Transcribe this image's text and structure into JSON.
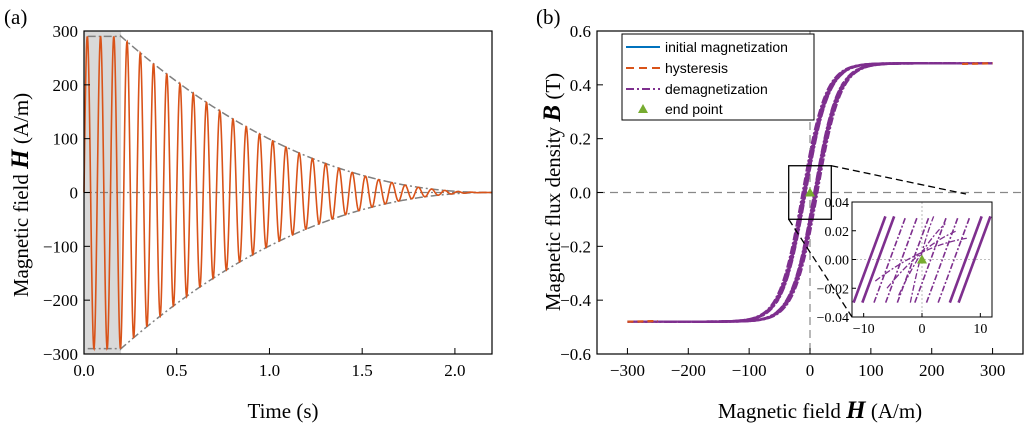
{
  "chart_data": [
    {
      "panel": "(a)",
      "type": "line",
      "xlabel_text": "Time (s)",
      "ylabel_text": "Magnetic field ",
      "ylabel_symbol": "H",
      "ylabel_unit": " (A/m)",
      "xlim": [
        0,
        2.2
      ],
      "ylim": [
        -300,
        300
      ],
      "xticks": [
        0.0,
        0.5,
        1.0,
        1.5,
        2.0
      ],
      "xtick_labels": [
        "0.0",
        "0.5",
        "1.0",
        "1.5",
        "2.0"
      ],
      "yticks": [
        -300,
        -200,
        -100,
        0,
        100,
        200,
        300
      ],
      "ytick_labels": [
        "−300",
        "−200",
        "−100",
        "0",
        "100",
        "200",
        "300"
      ],
      "shaded_region": [
        0,
        0.2
      ],
      "signal": {
        "amplitude": 290,
        "frequency_hz": 14,
        "hold_until_s": 0.2,
        "decay_end_s": 2.2,
        "color": "#d95319"
      },
      "envelope": {
        "max": 290,
        "start_s": 0.2,
        "end_s": 2.2,
        "color": "#808080"
      }
    },
    {
      "panel": "(b)",
      "type": "line",
      "xlabel_text": "Magnetic field ",
      "xlabel_symbol": "H",
      "xlabel_unit": " (A/m)",
      "ylabel_text": "Magnetic flux density ",
      "ylabel_symbol": "B",
      "ylabel_unit": " (T)",
      "xlim": [
        -350,
        350
      ],
      "ylim": [
        -0.6,
        0.6
      ],
      "xticks": [
        -300,
        -200,
        -100,
        0,
        100,
        200,
        300
      ],
      "xtick_labels": [
        "−300",
        "−200",
        "−100",
        "0",
        "100",
        "200",
        "300"
      ],
      "yticks": [
        -0.6,
        -0.4,
        -0.2,
        0.0,
        0.2,
        0.4,
        0.6
      ],
      "ytick_labels": [
        "−0.6",
        "−0.4",
        "−0.2",
        "0.0",
        "0.2",
        "0.4",
        "0.6"
      ],
      "legend_position": "top-left",
      "series": [
        {
          "name": "initial magnetization",
          "color": "#0072bd",
          "style": "solid"
        },
        {
          "name": "hysteresis",
          "color": "#d95319",
          "style": "dashed"
        },
        {
          "name": "demagnetization",
          "color": "#7e2f8e",
          "style": "dashdot"
        },
        {
          "name": "end point",
          "color": "#77ac30",
          "style": "triangle-marker",
          "x": 0,
          "y": 0
        }
      ],
      "saturation_B": 0.48,
      "inset": {
        "xlim": [
          -12,
          12
        ],
        "ylim": [
          -0.04,
          0.04
        ],
        "xticks": [
          -10,
          0,
          10
        ],
        "xtick_labels": [
          "−10",
          "0",
          "10"
        ],
        "yticks": [
          -0.04,
          -0.02,
          0.0,
          0.02,
          0.04
        ],
        "ytick_labels": [
          "−0.04",
          "−0.02",
          "0.00",
          "0.02",
          "0.04"
        ]
      }
    }
  ]
}
